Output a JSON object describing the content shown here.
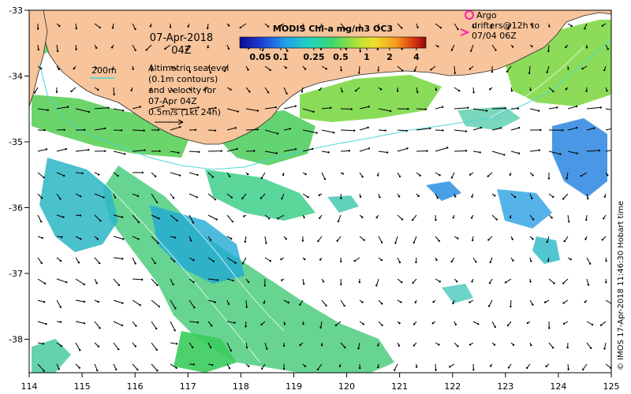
{
  "map": {
    "date_line1": "07-Apr-2018",
    "date_line2": "04Z",
    "sealevel_lines": [
      "Altimetric sealevel",
      "(0.1m contours)",
      "and velocity for",
      "07-Apr 04Z",
      "0.5m/s (1kt 24h)"
    ],
    "isobath_label": "200m",
    "argo_lines": [
      "Argo",
      "drifters@12h to",
      "07/04 06Z"
    ],
    "credit": "© IMOS 17-Apr-2018 11:46:30 Hobart time",
    "colorbar": {
      "title": "MODIS Chl-a mg/m3 OC3",
      "ticks": [
        "0.05",
        "0.1",
        "0.25",
        "0.5",
        "1",
        "2",
        "4"
      ]
    },
    "lon_ticks": [
      "114",
      "115",
      "116",
      "117",
      "118",
      "119",
      "120",
      "121",
      "122",
      "123",
      "124",
      "125"
    ],
    "lat_ticks": [
      "-33",
      "-34",
      "-35",
      "-36",
      "-37",
      "-38"
    ],
    "colors": {
      "land": "#f7c49b",
      "isobath": "#4fd5d6",
      "argo_circle": "#ff1fa8",
      "argo_arrow": "#ff1fa8",
      "chl_low": "#2255cc",
      "chl_mid": "#27c48a",
      "chl_high": "#b01010"
    }
  }
}
